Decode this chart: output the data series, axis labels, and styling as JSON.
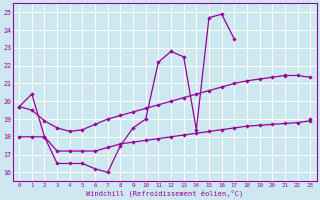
{
  "xlabel": "Windchill (Refroidissement éolien,°C)",
  "background_color": "#cde8f0",
  "grid_color": "#ffffff",
  "line_color": "#990099",
  "xlim": [
    -0.5,
    23.5
  ],
  "ylim": [
    15.5,
    25.5
  ],
  "yticks": [
    16,
    17,
    18,
    19,
    20,
    21,
    22,
    23,
    24,
    25
  ],
  "xticks": [
    0,
    1,
    2,
    3,
    4,
    5,
    6,
    7,
    8,
    9,
    10,
    11,
    12,
    13,
    14,
    15,
    16,
    17,
    18,
    19,
    20,
    21,
    22,
    23
  ],
  "series1_x": [
    0,
    1,
    2,
    3,
    4,
    5,
    6,
    7,
    8,
    9,
    10,
    11,
    12,
    13,
    14,
    15,
    16,
    17,
    21,
    23
  ],
  "series1_y": [
    19.7,
    20.4,
    18.0,
    16.5,
    16.5,
    16.5,
    16.2,
    16.0,
    17.5,
    18.5,
    19.0,
    22.2,
    22.8,
    22.5,
    18.4,
    24.7,
    24.9,
    23.5,
    21.4,
    19.0
  ],
  "series1_gaps": [
    [
      17,
      21
    ],
    [
      21,
      23
    ]
  ],
  "series2": [
    19.7,
    19.5,
    18.9,
    18.5,
    18.3,
    18.4,
    18.7,
    19.0,
    19.2,
    19.4,
    19.6,
    19.8,
    20.0,
    20.2,
    20.4,
    20.6,
    20.8,
    21.0,
    21.15,
    21.25,
    21.35,
    21.45,
    21.45,
    21.35
  ],
  "series3": [
    18.0,
    18.0,
    18.0,
    17.2,
    17.2,
    17.2,
    17.2,
    17.4,
    17.6,
    17.7,
    17.8,
    17.9,
    18.0,
    18.1,
    18.2,
    18.3,
    18.4,
    18.5,
    18.6,
    18.65,
    18.7,
    18.75,
    18.8,
    18.9
  ]
}
